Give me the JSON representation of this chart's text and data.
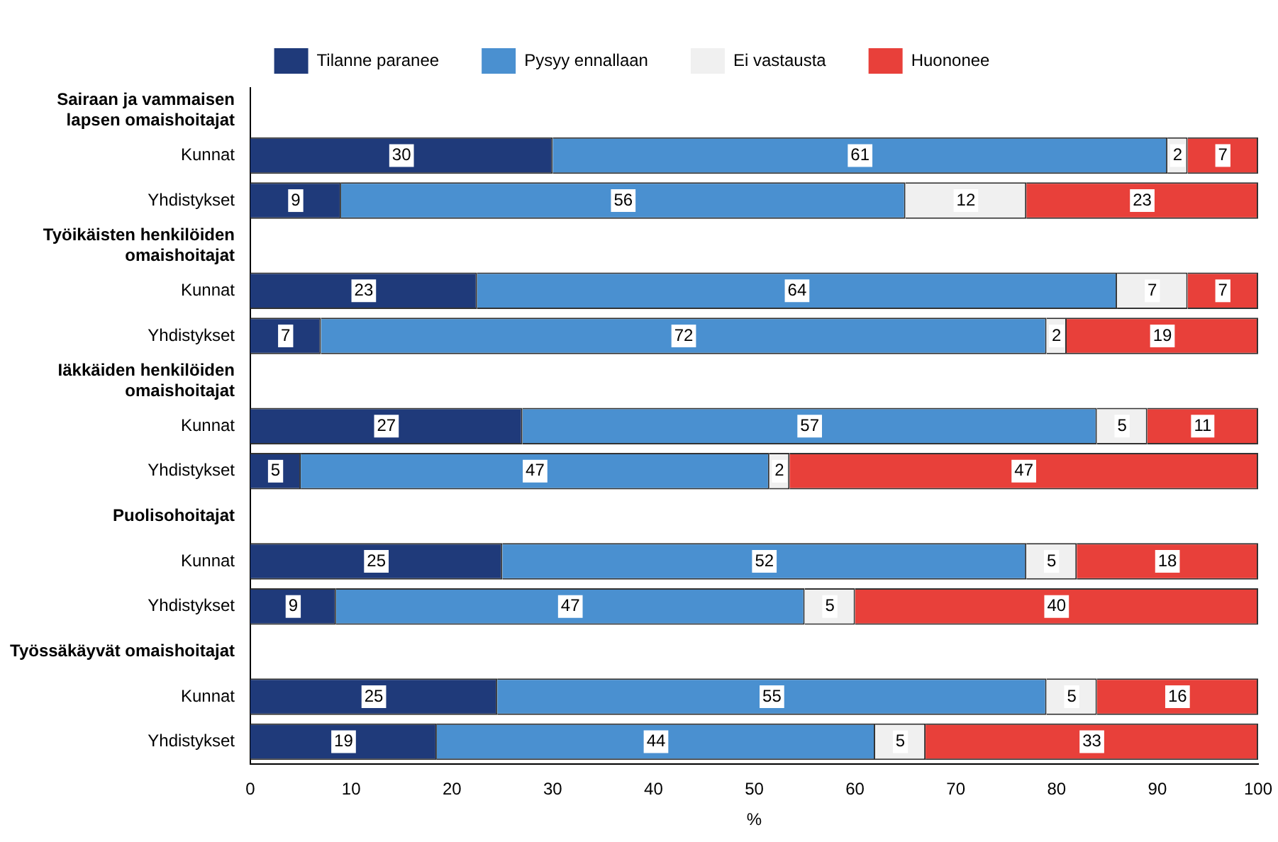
{
  "chart_data": {
    "type": "bar",
    "orientation": "horizontal",
    "stacked": true,
    "xlabel": "%",
    "xlim": [
      0,
      100
    ],
    "xticks": [
      0,
      10,
      20,
      30,
      40,
      50,
      60,
      70,
      80,
      90,
      100
    ],
    "grid": false,
    "legend": "top",
    "categories": [
      "Sairaan ja vammaisen lapsen omaishoitajat",
      "Kunnat",
      "Yhdistykset",
      "Työikäisten henkilöiden omaishoitajat",
      "Kunnat",
      "Yhdistykset",
      "Iäkkäiden henkilöiden omaishoitajat",
      "Kunnat",
      "Yhdistykset",
      "Puolisohoitajat",
      "Kunnat",
      "Yhdistykset",
      "Työssäkäyvät omaishoitajat",
      "Kunnat",
      "Yhdistykset"
    ],
    "series": [
      {
        "name": "Tilanne paranee",
        "color": "#1f3a7a",
        "values": [
          null,
          30,
          9,
          null,
          22.5,
          7,
          null,
          27,
          5,
          null,
          25,
          8.5,
          null,
          24.5,
          18.5
        ],
        "value_labels": [
          null,
          "30",
          "9",
          null,
          "23",
          "7",
          null,
          "27",
          "5",
          null,
          "25",
          "9",
          null,
          "25",
          "19"
        ]
      },
      {
        "name": "Pysyy ennallaan",
        "color": "#4a90d0",
        "values": [
          null,
          61,
          56,
          null,
          63.5,
          72,
          null,
          57,
          46.5,
          null,
          52,
          46.5,
          null,
          54.5,
          43.5
        ],
        "value_labels": [
          null,
          "61",
          "56",
          null,
          "64",
          "72",
          null,
          "57",
          "47",
          null,
          "52",
          "47",
          null,
          "55",
          "44"
        ]
      },
      {
        "name": "Ei vastausta",
        "color": "#f0f0f0",
        "values": [
          null,
          2,
          12,
          null,
          7,
          2,
          null,
          5,
          2,
          null,
          5,
          5,
          null,
          5,
          5
        ],
        "value_labels": [
          null,
          "2",
          "12",
          null,
          "7",
          "2",
          null,
          "5",
          "2",
          null,
          "5",
          "5",
          null,
          "5",
          "5"
        ]
      },
      {
        "name": "Huononee",
        "color": "#e8403a",
        "values": [
          null,
          7,
          23,
          null,
          7,
          19,
          null,
          11,
          46.5,
          null,
          18,
          40,
          null,
          16,
          33
        ],
        "value_labels": [
          null,
          "7",
          "23",
          null,
          "7",
          "19",
          null,
          "11",
          "47",
          null,
          "18",
          "40",
          null,
          "16",
          "33"
        ]
      }
    ]
  }
}
